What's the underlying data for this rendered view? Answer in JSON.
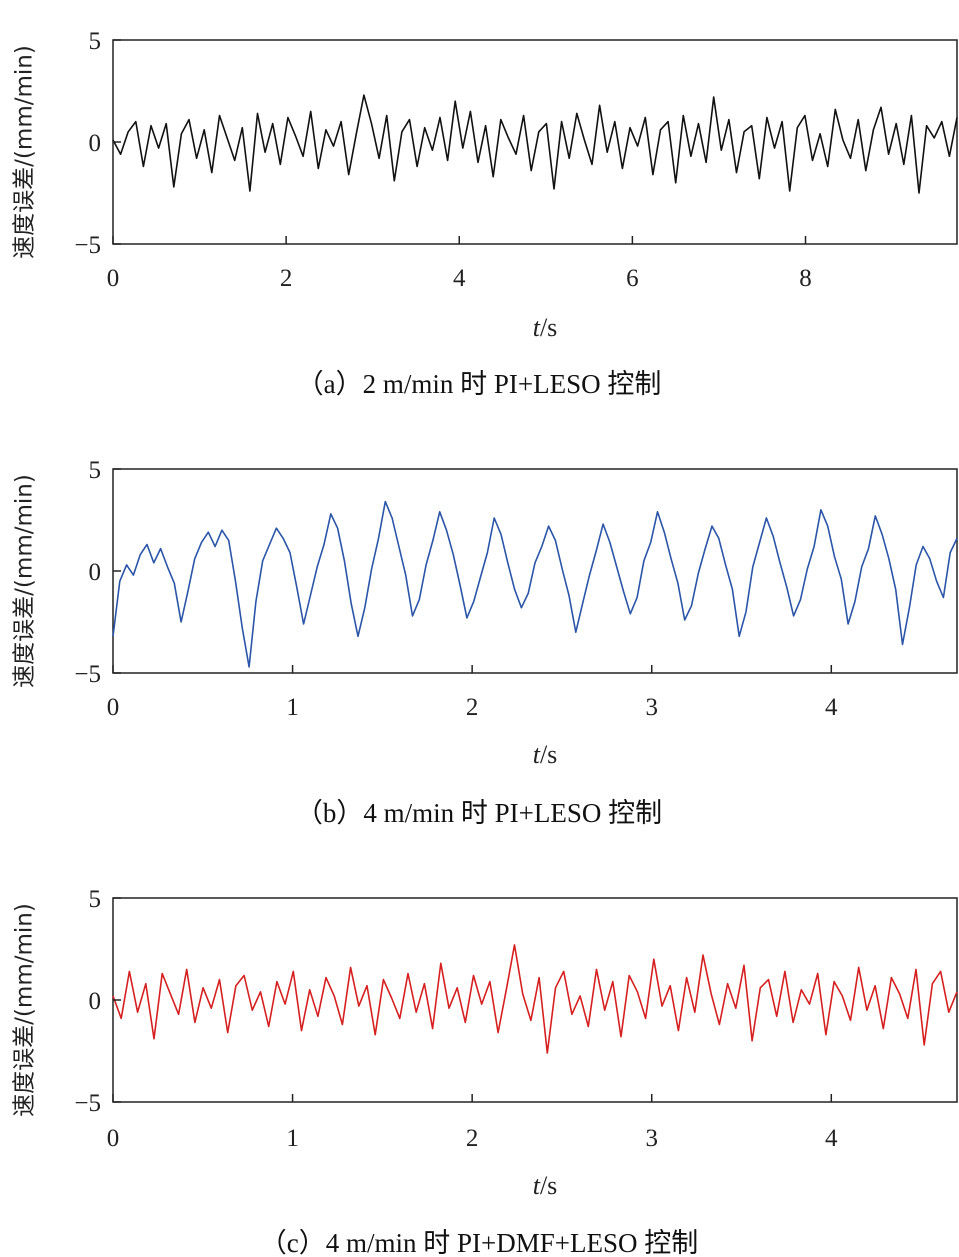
{
  "chart_data": [
    {
      "type": "line",
      "caption": "（a）2 m/min 时 PI+LESO 控制",
      "xlabel_italic": "t",
      "xlabel_unit": "/s",
      "ylabel": "速度误差/(mm/min)",
      "xlim": [
        0,
        9.75
      ],
      "ylim": [
        -5,
        5
      ],
      "xticks": [
        0,
        2,
        4,
        6,
        8
      ],
      "xtick_labels": [
        "0",
        "2",
        "4",
        "6",
        "8"
      ],
      "yticks": [
        5,
        0,
        -5
      ],
      "ytick_labels": [
        "5",
        "0",
        "−5"
      ],
      "series": [
        {
          "color": "#111111",
          "values": [
            0.1,
            -0.6,
            0.5,
            1.0,
            -1.2,
            0.8,
            -0.3,
            0.9,
            -2.2,
            0.4,
            1.1,
            -0.8,
            0.6,
            -1.5,
            1.3,
            0.2,
            -0.9,
            0.7,
            -2.4,
            1.4,
            -0.5,
            0.9,
            -1.1,
            1.2,
            0.3,
            -0.7,
            1.5,
            -1.3,
            0.6,
            -0.2,
            1.0,
            -1.6,
            0.4,
            2.3,
            0.9,
            -0.8,
            1.3,
            -1.9,
            0.5,
            1.1,
            -1.2,
            0.7,
            -0.4,
            1.2,
            -0.9,
            2.0,
            -0.3,
            1.5,
            -1.0,
            0.8,
            -1.7,
            1.1,
            0.2,
            -0.6,
            1.3,
            -1.4,
            0.5,
            0.9,
            -2.3,
            1.0,
            -0.8,
            1.4,
            0.1,
            -1.1,
            1.8,
            -0.5,
            1.0,
            -1.3,
            0.7,
            -0.2,
            1.2,
            -1.6,
            0.6,
            1.0,
            -2.0,
            1.3,
            -0.7,
            0.9,
            -1.0,
            2.2,
            -0.4,
            1.1,
            -1.5,
            0.5,
            0.8,
            -1.8,
            1.2,
            -0.3,
            1.0,
            -2.4,
            0.7,
            1.3,
            -0.9,
            0.4,
            -1.2,
            1.6,
            0.1,
            -0.8,
            1.1,
            -1.4,
            0.6,
            1.7,
            -0.6,
            0.9,
            -1.1,
            1.3,
            -2.5,
            0.8,
            0.2,
            1.0,
            -0.7,
            1.2
          ],
          "x_end": 9.75
        }
      ]
    },
    {
      "type": "line",
      "caption": "（b）4 m/min 时 PI+LESO 控制",
      "xlabel_italic": "t",
      "xlabel_unit": "/s",
      "ylabel": "速度误差/(mm/min)",
      "xlim": [
        0,
        4.7
      ],
      "ylim": [
        -5,
        5
      ],
      "xticks": [
        0,
        1,
        2,
        3,
        4
      ],
      "xtick_labels": [
        "0",
        "1",
        "2",
        "3",
        "4"
      ],
      "yticks": [
        5,
        0,
        -5
      ],
      "ytick_labels": [
        "5",
        "0",
        "−5"
      ],
      "series": [
        {
          "color": "#2a55a8",
          "values": [
            -3.2,
            -0.5,
            0.3,
            -0.2,
            0.8,
            1.3,
            0.4,
            1.1,
            0.2,
            -0.6,
            -2.5,
            -1.0,
            0.6,
            1.4,
            1.9,
            1.2,
            2.0,
            1.5,
            -0.5,
            -2.8,
            -4.7,
            -1.5,
            0.5,
            1.3,
            2.1,
            1.6,
            0.9,
            -0.8,
            -2.6,
            -1.2,
            0.2,
            1.3,
            2.8,
            2.1,
            0.5,
            -1.6,
            -3.2,
            -1.8,
            0.1,
            1.6,
            3.4,
            2.6,
            1.2,
            -0.2,
            -2.2,
            -1.4,
            0.3,
            1.5,
            2.9,
            2.0,
            0.8,
            -0.7,
            -2.3,
            -1.5,
            -0.3,
            0.9,
            2.6,
            1.8,
            0.4,
            -0.9,
            -1.8,
            -1.1,
            0.4,
            1.2,
            2.2,
            1.5,
            0.1,
            -1.2,
            -3.0,
            -1.6,
            -0.2,
            1.0,
            2.3,
            1.4,
            0.2,
            -1.0,
            -2.1,
            -1.3,
            0.5,
            1.4,
            2.9,
            1.9,
            0.6,
            -0.6,
            -2.4,
            -1.7,
            -0.1,
            1.1,
            2.2,
            1.6,
            0.3,
            -0.9,
            -3.2,
            -2.0,
            0.2,
            1.4,
            2.6,
            1.7,
            0.4,
            -0.8,
            -2.2,
            -1.4,
            0.1,
            1.2,
            3.0,
            2.2,
            0.7,
            -0.4,
            -2.6,
            -1.5,
            0.2,
            1.1,
            2.7,
            1.8,
            0.6,
            -0.9,
            -3.6,
            -1.8,
            0.3,
            1.2,
            0.6,
            -0.5,
            -1.3,
            0.9,
            1.6
          ],
          "x_end": 4.7
        }
      ]
    },
    {
      "type": "line",
      "caption": "（c）4 m/min 时 PI+DMF+LESO 控制",
      "xlabel_italic": "t",
      "xlabel_unit": "/s",
      "ylabel": "速度误差/(mm/min)",
      "xlim": [
        0,
        4.7
      ],
      "ylim": [
        -5,
        5
      ],
      "xticks": [
        0,
        1,
        2,
        3,
        4
      ],
      "xtick_labels": [
        "0",
        "1",
        "2",
        "3",
        "4"
      ],
      "yticks": [
        5,
        0,
        -5
      ],
      "ytick_labels": [
        "5",
        "0",
        "−5"
      ],
      "series": [
        {
          "color": "#d62020",
          "values": [
            0.2,
            -0.9,
            1.4,
            -0.6,
            0.8,
            -1.9,
            1.3,
            0.3,
            -0.7,
            1.5,
            -1.1,
            0.6,
            -0.4,
            1.0,
            -1.6,
            0.7,
            1.2,
            -0.5,
            0.4,
            -1.3,
            0.9,
            -0.2,
            1.4,
            -1.5,
            0.5,
            -0.8,
            1.1,
            0.2,
            -1.2,
            1.6,
            -0.3,
            0.7,
            -1.7,
            1.0,
            0.1,
            -0.9,
            1.3,
            -0.6,
            0.8,
            -1.4,
            1.8,
            -0.4,
            0.6,
            -1.1,
            1.2,
            -0.2,
            0.9,
            -1.6,
            0.5,
            2.7,
            0.3,
            -1.0,
            1.1,
            -2.6,
            0.6,
            1.4,
            -0.7,
            0.2,
            -1.3,
            1.5,
            -0.5,
            0.9,
            -1.8,
            1.2,
            0.4,
            -0.9,
            2.0,
            -0.3,
            0.7,
            -1.5,
            1.1,
            -0.6,
            2.2,
            0.3,
            -1.2,
            0.8,
            -0.4,
            1.7,
            -2.0,
            0.6,
            1.0,
            -0.8,
            1.4,
            -1.1,
            0.5,
            -0.2,
            1.3,
            -1.7,
            0.9,
            0.2,
            -1.0,
            1.6,
            -0.5,
            0.7,
            -1.4,
            1.1,
            0.3,
            -0.9,
            1.5,
            -2.2,
            0.8,
            1.4,
            -0.6,
            0.4
          ],
          "x_end": 4.7
        }
      ]
    }
  ]
}
